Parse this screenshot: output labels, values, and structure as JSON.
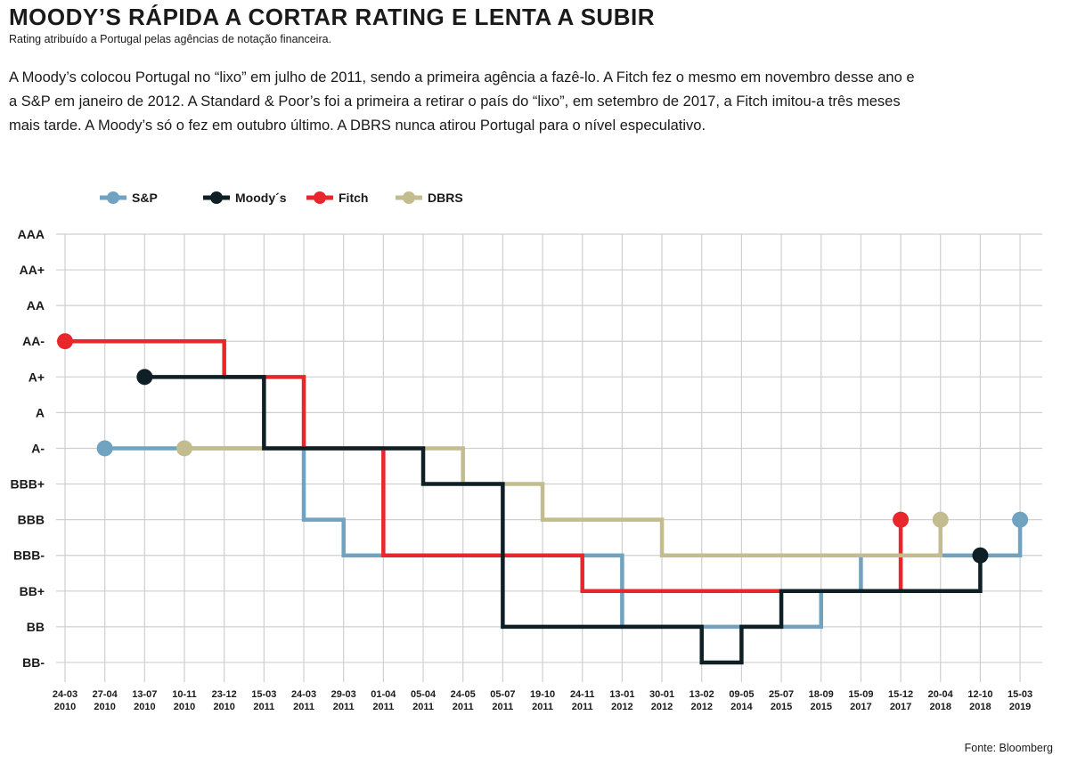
{
  "header": {
    "title": "MOODY’S RÁPIDA A CORTAR RATING E LENTA A SUBIR",
    "subtitle": "Rating atribuído a Portugal pelas agências de notação financeira.",
    "intro": "A Moody’s colocou Portugal no “lixo” em julho de 2011, sendo a primeira agência a fazê-lo. A Fitch fez o mesmo em novembro desse ano e a S&P em janeiro de 2012. A Standard & Poor’s foi a primeira a retirar o país do “lixo”, em setembro de 2017, a Fitch imitou-a três meses mais tarde. A Moody’s só o fez em outubro último. A DBRS nunca atirou Portugal para o nível especulativo."
  },
  "source": "Fonte: Bloomberg",
  "chart_data": {
    "type": "line",
    "step": true,
    "grid": true,
    "legend_position": "top-left",
    "y_categories": [
      "AAA",
      "AA+",
      "AA",
      "AA-",
      "A+",
      "A",
      "A-",
      "BBB+",
      "BBB",
      "BBB-",
      "BB+",
      "BB",
      "BB-"
    ],
    "x_ticks": [
      {
        "day": "24-03",
        "year": "2010"
      },
      {
        "day": "27-04",
        "year": "2010"
      },
      {
        "day": "13-07",
        "year": "2010"
      },
      {
        "day": "10-11",
        "year": "2010"
      },
      {
        "day": "23-12",
        "year": "2010"
      },
      {
        "day": "15-03",
        "year": "2011"
      },
      {
        "day": "24-03",
        "year": "2011"
      },
      {
        "day": "29-03",
        "year": "2011"
      },
      {
        "day": "01-04",
        "year": "2011"
      },
      {
        "day": "05-04",
        "year": "2011"
      },
      {
        "day": "24-05",
        "year": "2011"
      },
      {
        "day": "05-07",
        "year": "2011"
      },
      {
        "day": "19-10",
        "year": "2011"
      },
      {
        "day": "24-11",
        "year": "2011"
      },
      {
        "day": "13-01",
        "year": "2012"
      },
      {
        "day": "30-01",
        "year": "2012"
      },
      {
        "day": "13-02",
        "year": "2012"
      },
      {
        "day": "09-05",
        "year": "2014"
      },
      {
        "day": "25-07",
        "year": "2015"
      },
      {
        "day": "18-09",
        "year": "2015"
      },
      {
        "day": "15-09",
        "year": "2017"
      },
      {
        "day": "15-12",
        "year": "2017"
      },
      {
        "day": "20-04",
        "year": "2018"
      },
      {
        "day": "12-10",
        "year": "2018"
      },
      {
        "day": "15-03",
        "year": "2019"
      }
    ],
    "series": [
      {
        "name": "S&P",
        "color": "#6fa3bf",
        "steps": [
          {
            "x": "27-04-2010",
            "y": "A-"
          },
          {
            "x": "24-03-2011",
            "y": "BBB"
          },
          {
            "x": "29-03-2011",
            "y": "BBB-"
          },
          {
            "x": "13-01-2012",
            "y": "BB"
          },
          {
            "x": "18-09-2015",
            "y": "BB+"
          },
          {
            "x": "15-09-2017",
            "y": "BBB-"
          },
          {
            "x": "15-03-2019",
            "y": "BBB"
          }
        ]
      },
      {
        "name": "Moody´s",
        "color": "#0f1f26",
        "steps": [
          {
            "x": "13-07-2010",
            "y": "A+"
          },
          {
            "x": "15-03-2011",
            "y": "A-"
          },
          {
            "x": "05-04-2011",
            "y": "BBB+"
          },
          {
            "x": "05-07-2011",
            "y": "BB"
          },
          {
            "x": "13-02-2012",
            "y": "BB-"
          },
          {
            "x": "09-05-2014",
            "y": "BB"
          },
          {
            "x": "25-07-2015",
            "y": "BB+"
          },
          {
            "x": "12-10-2018",
            "y": "BBB-"
          }
        ]
      },
      {
        "name": "Fitch",
        "color": "#e8262c",
        "steps": [
          {
            "x": "24-03-2010",
            "y": "AA-"
          },
          {
            "x": "23-12-2010",
            "y": "A+"
          },
          {
            "x": "24-03-2011",
            "y": "A-"
          },
          {
            "x": "01-04-2011",
            "y": "BBB-"
          },
          {
            "x": "24-11-2011",
            "y": "BB+"
          },
          {
            "x": "15-12-2017",
            "y": "BBB"
          }
        ]
      },
      {
        "name": "DBRS",
        "color": "#c2bc8e",
        "steps": [
          {
            "x": "10-11-2010",
            "y": "A-"
          },
          {
            "x": "24-05-2011",
            "y": "BBB+"
          },
          {
            "x": "19-10-2011",
            "y": "BBB"
          },
          {
            "x": "30-01-2012",
            "y": "BBB-"
          },
          {
            "x": "20-04-2018",
            "y": "BBB"
          }
        ]
      }
    ]
  }
}
